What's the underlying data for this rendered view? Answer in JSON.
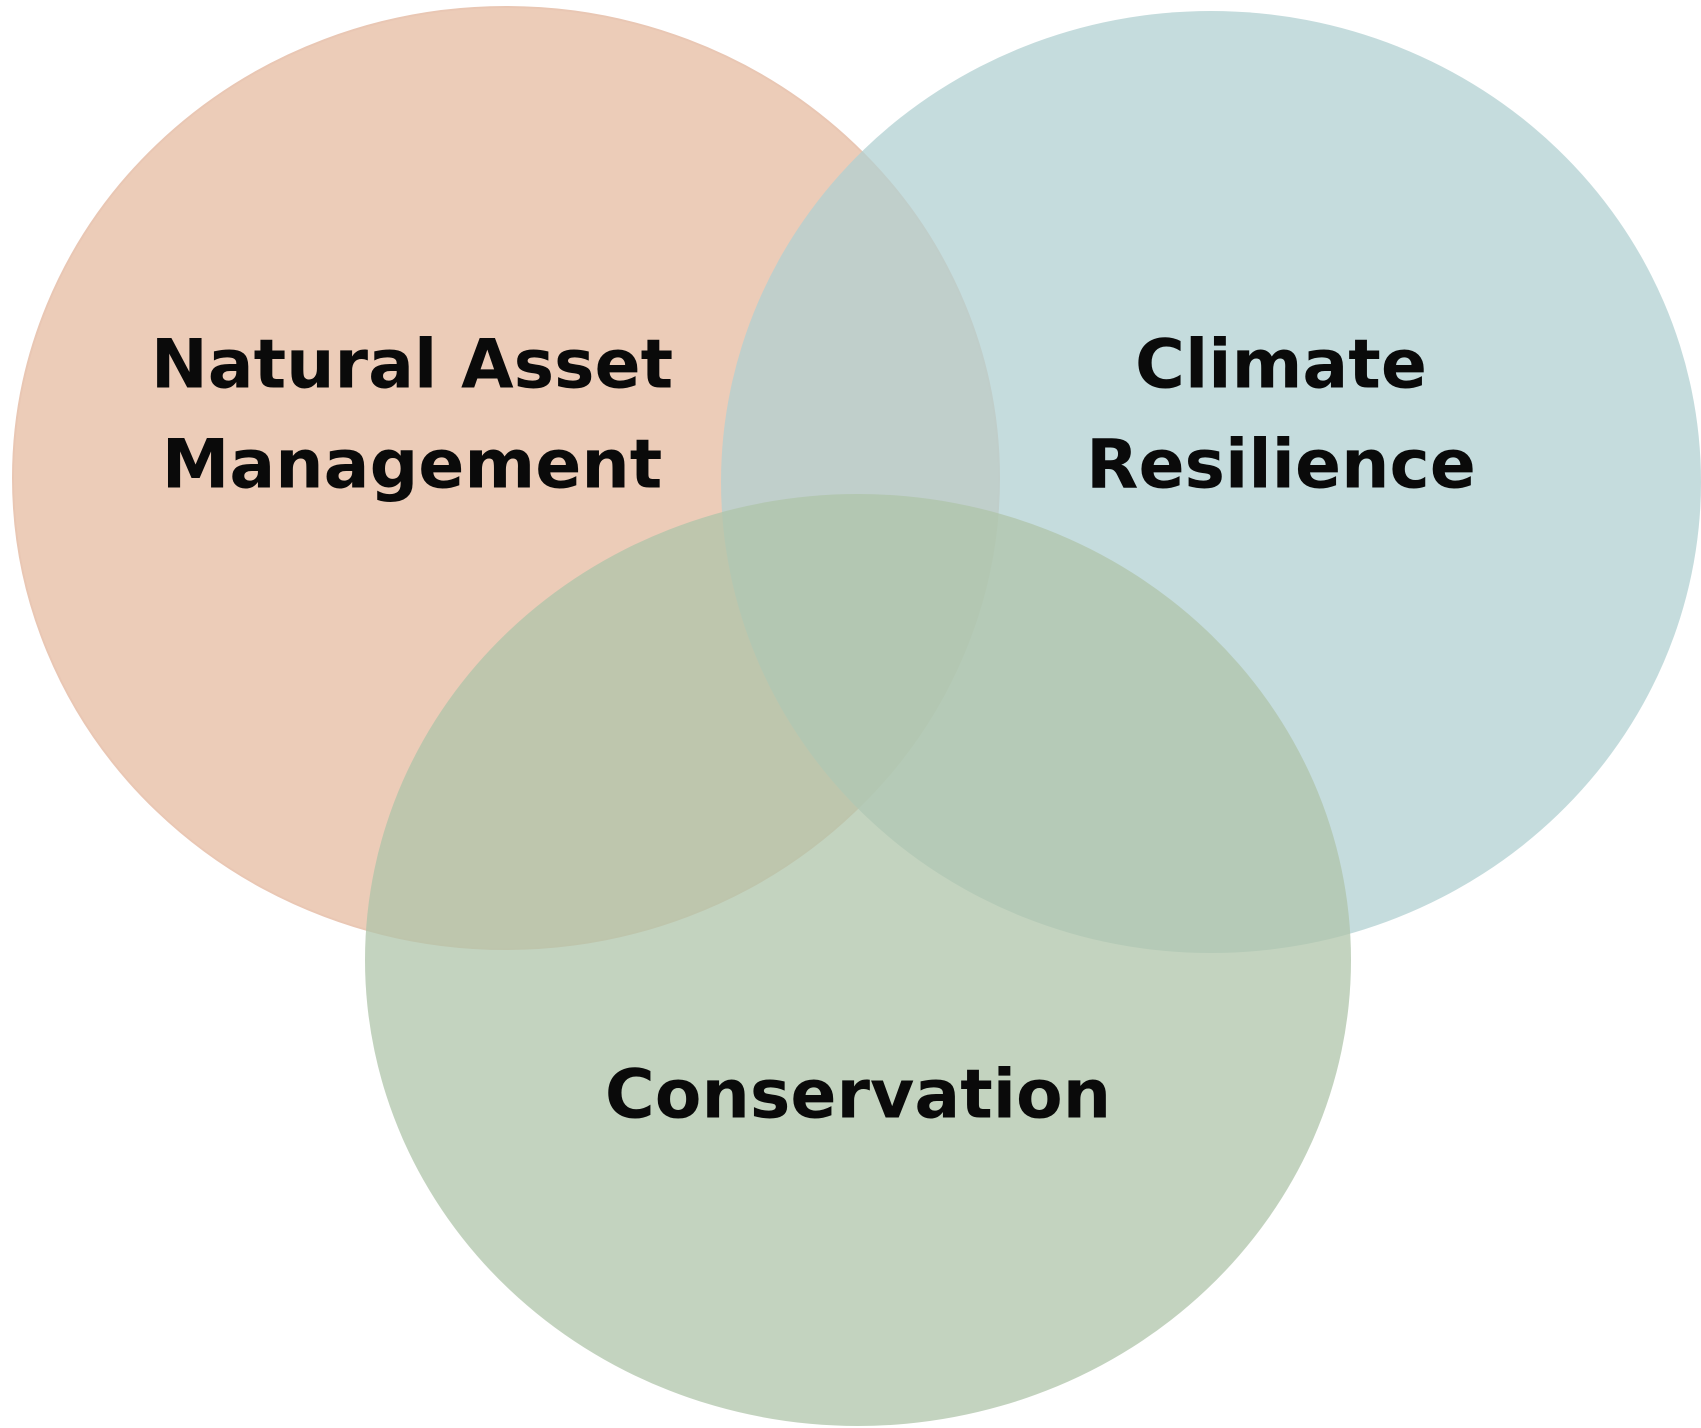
{
  "circles": [
    {
      "label": [
        "Natural Asset",
        "Management"
      ]
    },
    {
      "label": [
        "Climate",
        "Resilience"
      ]
    },
    {
      "label": [
        "Conservation"
      ]
    }
  ]
}
